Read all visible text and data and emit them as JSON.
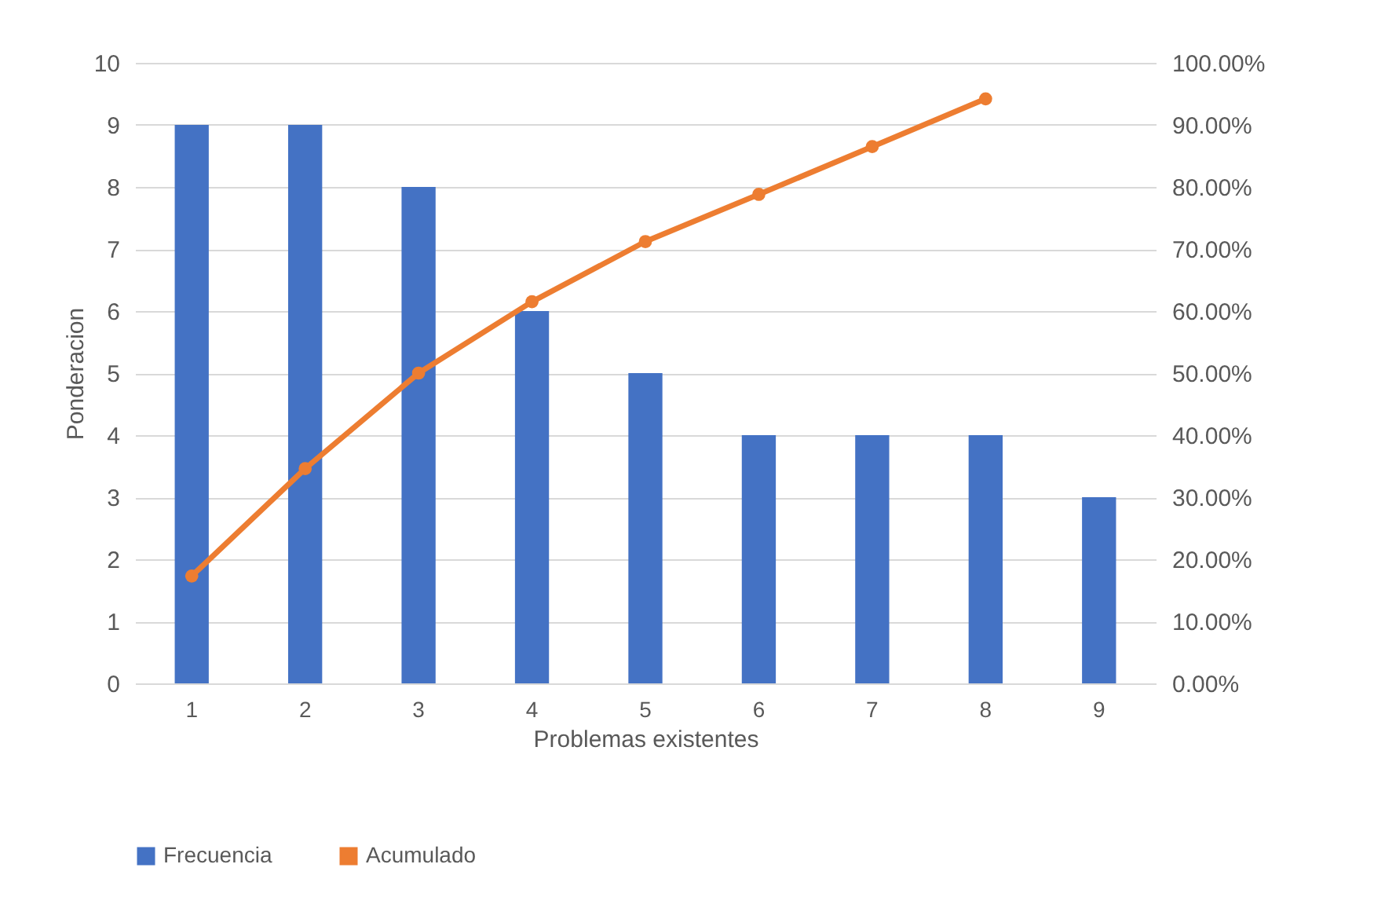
{
  "chart_data": {
    "type": "bar",
    "xlabel": "Problemas existentes",
    "ylabel": "Ponderacion",
    "categories": [
      "1",
      "2",
      "3",
      "4",
      "5",
      "6",
      "7",
      "8",
      "9"
    ],
    "series": [
      {
        "name": "Frecuencia",
        "color": "#4472c4",
        "values": [
          9,
          9,
          8,
          6,
          5,
          4,
          4,
          4,
          3
        ]
      },
      {
        "name": "Acumulado",
        "type": "line",
        "axis": "y2",
        "color": "#ed7d31",
        "values": [
          17.3,
          34.6,
          50,
          61.5,
          71.2,
          78.8,
          86.5,
          94.2,
          null
        ]
      }
    ],
    "ylim": [
      0,
      10
    ],
    "yticks": [
      0,
      1,
      2,
      3,
      4,
      5,
      6,
      7,
      8,
      9,
      10
    ],
    "y2lim": [
      0,
      100
    ],
    "y2ticks": [
      {
        "value": 0,
        "label": "0.00%"
      },
      {
        "value": 10,
        "label": "10.00%"
      },
      {
        "value": 20,
        "label": "20.00%"
      },
      {
        "value": 30,
        "label": "30.00%"
      },
      {
        "value": 40,
        "label": "40.00%"
      },
      {
        "value": 50,
        "label": "50.00%"
      },
      {
        "value": 60,
        "label": "60.00%"
      },
      {
        "value": 70,
        "label": "70.00%"
      },
      {
        "value": 80,
        "label": "80.00%"
      },
      {
        "value": 90,
        "label": "90.00%"
      },
      {
        "value": 100,
        "label": "100.00%"
      }
    ],
    "grid": "y",
    "legend": "bottom",
    "marker": "circle"
  }
}
